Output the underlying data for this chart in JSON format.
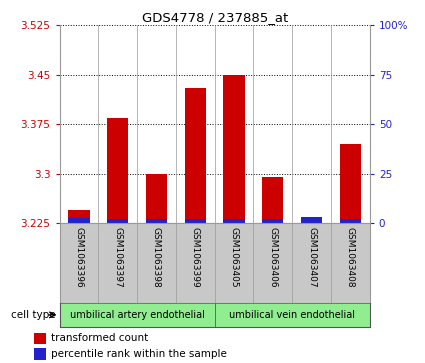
{
  "title": "GDS4778 / 237885_at",
  "samples": [
    "GSM1063396",
    "GSM1063397",
    "GSM1063398",
    "GSM1063399",
    "GSM1063405",
    "GSM1063406",
    "GSM1063407",
    "GSM1063408"
  ],
  "red_values": [
    3.245,
    3.385,
    3.3,
    3.43,
    3.45,
    3.295,
    3.228,
    3.345
  ],
  "blue_heights": [
    0.008,
    0.006,
    0.006,
    0.007,
    0.007,
    0.006,
    0.01,
    0.007
  ],
  "ylim_left": [
    3.225,
    3.525
  ],
  "ylim_right": [
    0,
    100
  ],
  "yticks_left": [
    3.225,
    3.3,
    3.375,
    3.45,
    3.525
  ],
  "ytick_labels_left": [
    "3.225",
    "3.3",
    "3.375",
    "3.45",
    "3.525"
  ],
  "yticks_right": [
    0,
    25,
    50,
    75,
    100
  ],
  "ytick_labels_right": [
    "0",
    "25",
    "50",
    "75",
    "100%"
  ],
  "base": 3.225,
  "red_color": "#cc0000",
  "blue_color": "#2222cc",
  "cell_bg": "#c8c8c8",
  "group1_label": "umbilical artery endothelial",
  "group2_label": "umbilical vein endothelial",
  "group_color": "#90ee90",
  "left_tick_color": "#cc0000",
  "right_tick_color": "#2222cc",
  "legend1": "transformed count",
  "legend2": "percentile rank within the sample",
  "cell_type_label": "cell type"
}
